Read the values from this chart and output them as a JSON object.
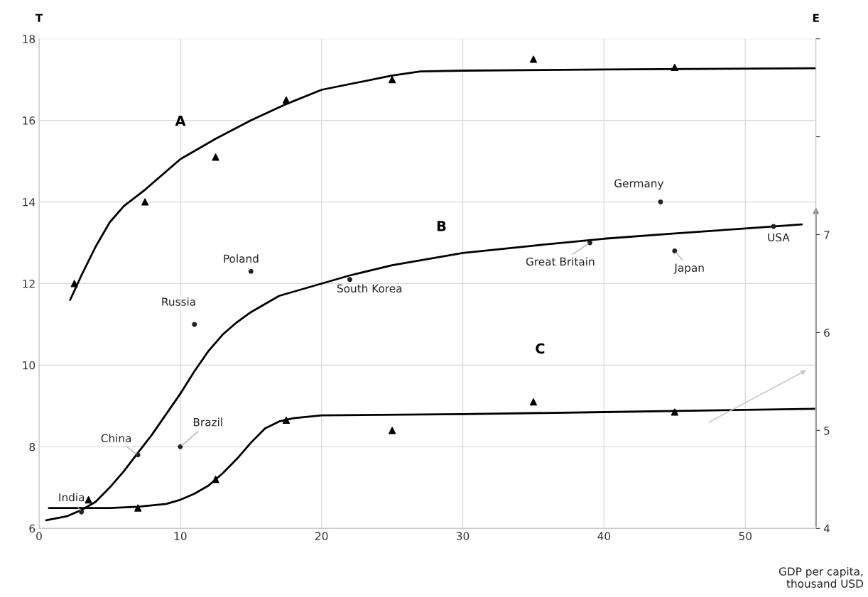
{
  "chart_data": {
    "type": "scatter",
    "ylabel": "T",
    "y2label": "E",
    "xlabel": "GDP per capita,\nthousand USD",
    "xlim": [
      0,
      55
    ],
    "xticks": [
      0,
      10,
      20,
      30,
      40,
      50
    ],
    "ylim": [
      6,
      18
    ],
    "yticks": [
      6,
      8,
      10,
      12,
      14,
      16,
      18
    ],
    "y2lim": [
      4,
      9
    ],
    "y2ticks": [
      4,
      5,
      6,
      7,
      {
        "value": 8,
        "label": null
      },
      {
        "value": 9,
        "label": null
      }
    ],
    "grid": true,
    "series": [
      {
        "type": "line",
        "color": "#000000",
        "marker": "none",
        "x": [
          2.2,
          3,
          4,
          5,
          6,
          7.5,
          10,
          12.5,
          15,
          17.5,
          20,
          25,
          27,
          30,
          40,
          55
        ],
        "values": [
          11.6,
          12.2,
          12.9,
          13.5,
          13.9,
          14.3,
          15.05,
          15.55,
          16.0,
          16.4,
          16.75,
          17.1,
          17.2,
          17.22,
          17.25,
          17.28
        ]
      },
      {
        "type": "line",
        "color": "#000000",
        "marker": "none",
        "x": [
          0.5,
          2,
          3,
          4,
          5,
          6,
          7,
          8,
          9,
          10,
          11,
          12,
          13,
          14,
          15,
          17,
          20,
          22,
          25,
          30,
          35,
          40,
          45,
          50,
          54
        ],
        "values": [
          6.2,
          6.3,
          6.45,
          6.65,
          7.0,
          7.4,
          7.85,
          8.3,
          8.8,
          9.3,
          9.85,
          10.35,
          10.75,
          11.05,
          11.3,
          11.7,
          12.0,
          12.2,
          12.45,
          12.75,
          12.93,
          13.1,
          13.23,
          13.35,
          13.45
        ]
      },
      {
        "type": "line",
        "color": "#000000",
        "marker": "none",
        "x": [
          0.7,
          5,
          7,
          9,
          10,
          11,
          12,
          13,
          14,
          15,
          16,
          17,
          18,
          20,
          30,
          40,
          55
        ],
        "values": [
          6.5,
          6.5,
          6.53,
          6.6,
          6.7,
          6.85,
          7.05,
          7.35,
          7.7,
          8.1,
          8.45,
          8.62,
          8.7,
          8.77,
          8.8,
          8.85,
          8.93
        ]
      },
      {
        "color": "#000000",
        "marker": "triangle",
        "x": [
          2.5,
          7.5,
          12.5,
          17.5,
          25,
          35,
          45
        ],
        "values": [
          12.0,
          14.0,
          15.1,
          16.5,
          17.0,
          17.5,
          17.3
        ]
      },
      {
        "color": "#000000",
        "marker": "triangle",
        "x": [
          3.5,
          7,
          12.5,
          17.5,
          25,
          35,
          45
        ],
        "values": [
          6.7,
          6.5,
          7.2,
          8.65,
          8.4,
          9.1,
          8.85
        ]
      },
      {
        "color": "#222222",
        "marker": "circle",
        "x": [
          3,
          7,
          10,
          11,
          15,
          22,
          39,
          44,
          45,
          52
        ],
        "values": [
          6.4,
          7.8,
          8.0,
          11.0,
          12.3,
          12.1,
          13.0,
          14.0,
          12.8,
          13.4
        ]
      }
    ],
    "annotations": [
      "A",
      "B",
      "C",
      {
        "text": "India",
        "x": 3,
        "y": 6.4
      },
      {
        "text": "China",
        "x": 7,
        "y": 7.8
      },
      {
        "text": "Brazil",
        "x": 10,
        "y": 8.0
      },
      {
        "text": "Russia",
        "x": 11,
        "y": 11.0
      },
      {
        "text": "Poland",
        "x": 15,
        "y": 12.3
      },
      {
        "text": "South Korea",
        "x": 22,
        "y": 12.1
      },
      {
        "text": "Great Britain",
        "x": 39,
        "y": 13.0
      },
      {
        "text": "Germany",
        "x": 44,
        "y": 14.0
      },
      {
        "text": "Japan",
        "x": 45,
        "y": 12.8
      },
      {
        "text": "USA",
        "x": 52,
        "y": 13.4
      }
    ]
  }
}
